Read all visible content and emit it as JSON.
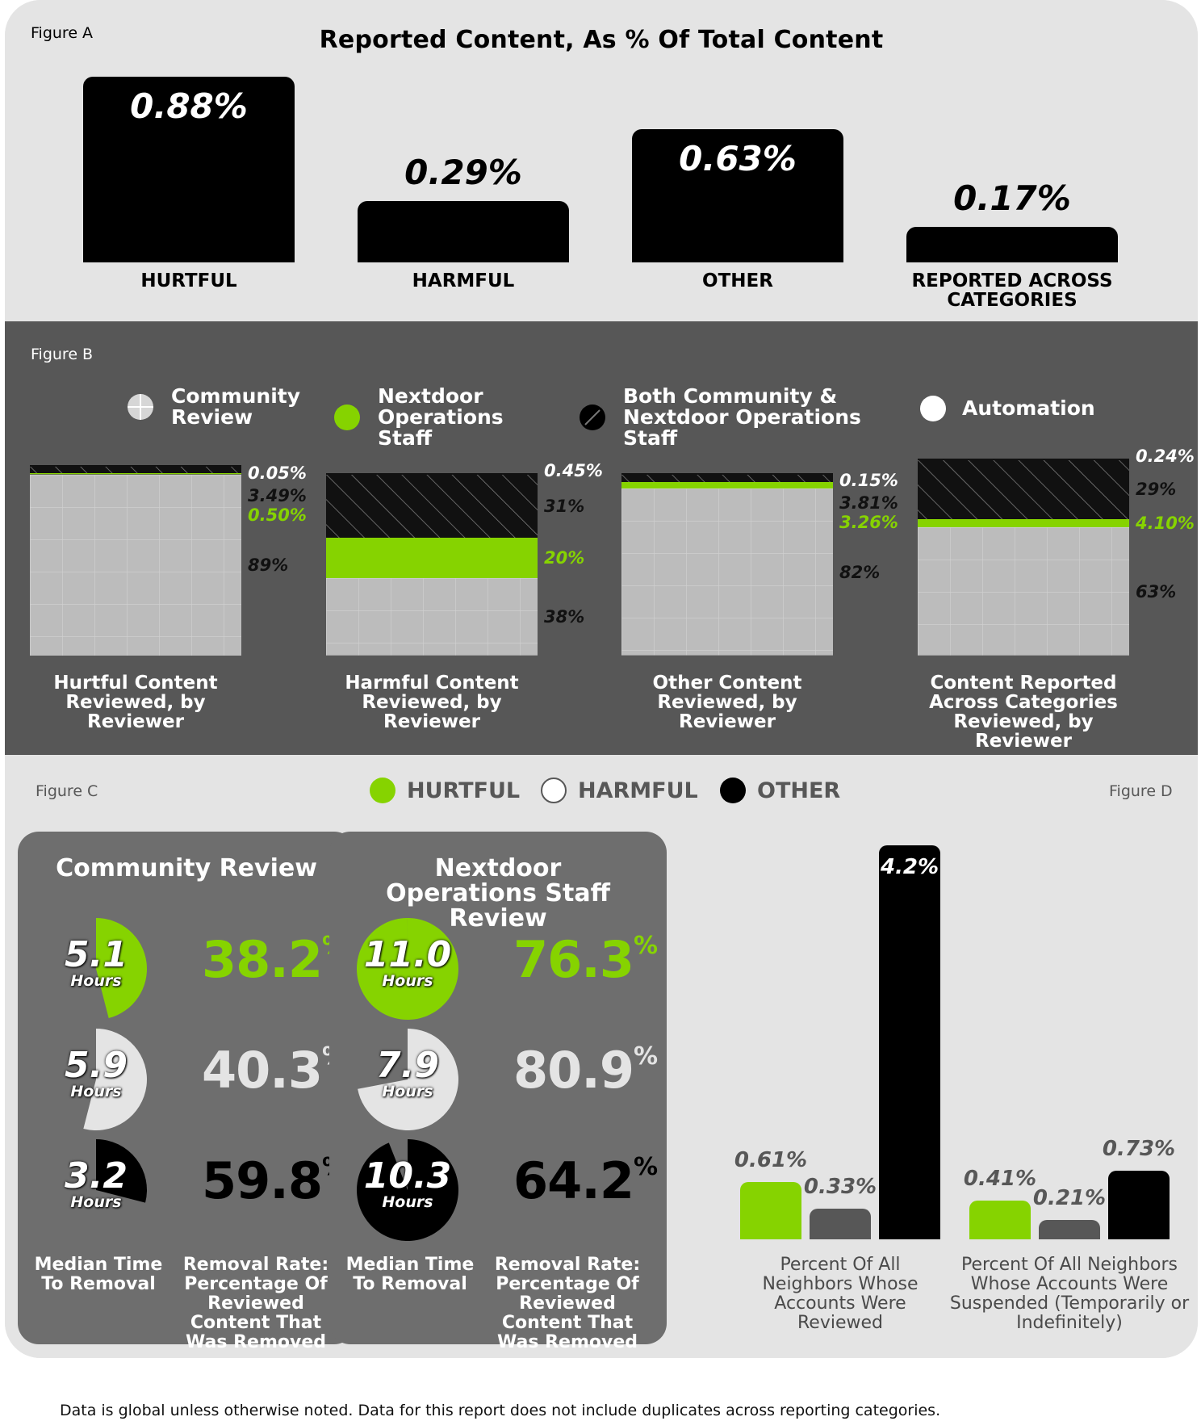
{
  "figure_a": {
    "label": "Figure A",
    "title": "Reported Content, As % Of Total Content"
  },
  "figure_b": {
    "label": "Figure B",
    "legend": [
      {
        "label": "Community Review",
        "icon": "grid-circle-icon"
      },
      {
        "label": "Nextdoor Operations Staff",
        "icon": "green-circle-icon"
      },
      {
        "label": "Both Community & Nextdoor Operations Staff",
        "icon": "hatched-circle-icon"
      },
      {
        "label": "Automation",
        "icon": "white-circle-icon"
      }
    ]
  },
  "figure_c": {
    "label": "Figure C",
    "legend": [
      "HURTFUL",
      "HARMFUL",
      "OTHER"
    ],
    "panels": [
      {
        "title": "Community Review",
        "unit": "Hours",
        "time_label": "Median Time To Removal",
        "rate_label": "Removal Rate: Percentage Of Reviewed Content That Was Removed",
        "rows": [
          {
            "hours": "5.1",
            "rate": "38.2",
            "fraction": 0.46
          },
          {
            "hours": "5.9",
            "rate": "40.3",
            "fraction": 0.54
          },
          {
            "hours": "3.2",
            "rate": "59.8",
            "fraction": 0.29
          }
        ]
      },
      {
        "title": "Nextdoor Operations Staff Review",
        "unit": "Hours",
        "time_label": "Median Time To Removal",
        "rate_label": "Removal Rate: Percentage Of Reviewed Content That Was Removed",
        "rows": [
          {
            "hours": "11.0",
            "rate": "76.3",
            "fraction": 1.0
          },
          {
            "hours": "7.9",
            "rate": "80.9",
            "fraction": 0.72
          },
          {
            "hours": "10.3",
            "rate": "64.2",
            "fraction": 0.94
          }
        ]
      }
    ]
  },
  "figure_d": {
    "label": "Figure D"
  },
  "footnote": "Data is global unless otherwise noted. Data for this report does not include duplicates across reporting categories.",
  "colors": {
    "green": "#86d300",
    "black": "#000000",
    "dark_gray": "#575757",
    "light_gray": "#bdbdbd",
    "bg": "#e4e4e4"
  },
  "chart_data": [
    {
      "type": "bar",
      "title": "Reported Content, As % Of Total Content",
      "categories": [
        "HURTFUL",
        "HARMFUL",
        "OTHER",
        "REPORTED ACROSS CATEGORIES"
      ],
      "values": [
        0.88,
        0.29,
        0.63,
        0.17
      ],
      "value_labels": [
        "0.88%",
        "0.29%",
        "0.63%",
        "0.17%"
      ]
    },
    {
      "type": "bar",
      "stacked": true,
      "charts": [
        {
          "caption": "Hurtful Content Reviewed, by Reviewer",
          "segments": [
            {
              "series": "Community Review",
              "value": 89,
              "label": "89%"
            },
            {
              "series": "Nextdoor Operations Staff",
              "value": 0.5,
              "label": "0.50%"
            },
            {
              "series": "Both Community & Nextdoor Operations Staff",
              "value": 3.49,
              "label": "3.49%"
            },
            {
              "series": "Automation",
              "value": 0.05,
              "label": "0.05%"
            }
          ]
        },
        {
          "caption": "Harmful Content Reviewed, by Reviewer",
          "segments": [
            {
              "series": "Community Review",
              "value": 38,
              "label": "38%"
            },
            {
              "series": "Nextdoor Operations Staff",
              "value": 20,
              "label": "20%"
            },
            {
              "series": "Both Community & Nextdoor Operations Staff",
              "value": 31,
              "label": "31%"
            },
            {
              "series": "Automation",
              "value": 0.45,
              "label": "0.45%"
            }
          ]
        },
        {
          "caption": "Other Content Reviewed, by Reviewer",
          "segments": [
            {
              "series": "Community Review",
              "value": 82,
              "label": "82%"
            },
            {
              "series": "Nextdoor Operations Staff",
              "value": 3.26,
              "label": "3.26%"
            },
            {
              "series": "Both Community & Nextdoor Operations Staff",
              "value": 3.81,
              "label": "3.81%"
            },
            {
              "series": "Automation",
              "value": 0.15,
              "label": "0.15%"
            }
          ]
        },
        {
          "caption": "Content Reported Across Categories Reviewed, by Reviewer",
          "segments": [
            {
              "series": "Community Review",
              "value": 63,
              "label": "63%"
            },
            {
              "series": "Nextdoor Operations Staff",
              "value": 4.1,
              "label": "4.10%"
            },
            {
              "series": "Both Community & Nextdoor Operations Staff",
              "value": 29,
              "label": "29%"
            },
            {
              "series": "Automation",
              "value": 0.24,
              "label": "0.24%"
            }
          ]
        }
      ]
    },
    {
      "type": "bar",
      "categories": [
        "Percent Of All Neighbors Whose Accounts Were Reviewed",
        "Percent Of All Neighbors Whose Accounts Were Suspended (Temporarily or Indefinitely)"
      ],
      "series": [
        {
          "name": "HURTFUL",
          "values": [
            0.61,
            0.41
          ],
          "labels": [
            "0.61%",
            "0.41%"
          ]
        },
        {
          "name": "HARMFUL",
          "values": [
            0.33,
            0.21
          ],
          "labels": [
            "0.33%",
            "0.21%"
          ]
        },
        {
          "name": "OTHER",
          "values": [
            4.2,
            0.73
          ],
          "labels": [
            "4.2%",
            "0.73%"
          ]
        }
      ]
    }
  ]
}
